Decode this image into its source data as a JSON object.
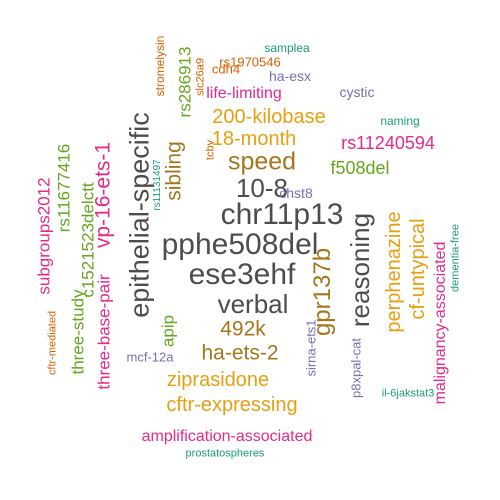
{
  "colors": {
    "dark": "#4d4d4d",
    "orange": "#e6a012",
    "brown": "#a6761d",
    "green": "#66a61e",
    "magenta": "#e7298a",
    "teal": "#1b9e77",
    "purple": "#7570b3",
    "rust": "#d95f02"
  },
  "words": [
    {
      "text": "pphe508del",
      "color": "dark"
    },
    {
      "text": "chr11p13",
      "color": "dark"
    },
    {
      "text": "ese3ehf",
      "color": "dark"
    },
    {
      "text": "epithelial-specific",
      "color": "dark"
    },
    {
      "text": "reasoning",
      "color": "dark"
    },
    {
      "text": "verbal",
      "color": "dark"
    },
    {
      "text": "10-8",
      "color": "dark"
    },
    {
      "text": "speed",
      "color": "brown"
    },
    {
      "text": "gpr137b",
      "color": "brown"
    },
    {
      "text": "492k",
      "color": "brown"
    },
    {
      "text": "sibling",
      "color": "brown"
    },
    {
      "text": "ha-ets-2",
      "color": "brown"
    },
    {
      "text": "vp-16-ets-1",
      "color": "magenta"
    },
    {
      "text": "200-kilobase",
      "color": "orange"
    },
    {
      "text": "18-month",
      "color": "orange"
    },
    {
      "text": "perphenazine",
      "color": "orange"
    },
    {
      "text": "cf-untypical",
      "color": "orange"
    },
    {
      "text": "ziprasidone",
      "color": "orange"
    },
    {
      "text": "cftr-expressing",
      "color": "orange"
    },
    {
      "text": "rs11240594",
      "color": "magenta"
    },
    {
      "text": "f508del",
      "color": "green"
    },
    {
      "text": "rs286913",
      "color": "green"
    },
    {
      "text": "c1521523delctt",
      "color": "green"
    },
    {
      "text": "rs11677416",
      "color": "green"
    },
    {
      "text": "three-study",
      "color": "green"
    },
    {
      "text": "apip",
      "color": "green"
    },
    {
      "text": "subgroups2012",
      "color": "magenta"
    },
    {
      "text": "three-base-pair",
      "color": "magenta"
    },
    {
      "text": "malignancy-associated",
      "color": "magenta"
    },
    {
      "text": "amplification-associated",
      "color": "magenta"
    },
    {
      "text": "life-limiting",
      "color": "magenta"
    },
    {
      "text": "cystic",
      "color": "purple"
    },
    {
      "text": "ha-esx",
      "color": "purple"
    },
    {
      "text": "chst8",
      "color": "purple"
    },
    {
      "text": "sirna-ets1",
      "color": "purple"
    },
    {
      "text": "p8xpal-cat",
      "color": "purple"
    },
    {
      "text": "mcf-12a",
      "color": "purple"
    },
    {
      "text": "samplea",
      "color": "teal"
    },
    {
      "text": "naming",
      "color": "teal"
    },
    {
      "text": "dementia-free",
      "color": "teal"
    },
    {
      "text": "il-6jakstat3",
      "color": "teal"
    },
    {
      "text": "prostatospheres",
      "color": "teal"
    },
    {
      "text": "rs11131497",
      "color": "teal"
    },
    {
      "text": "rs1970546",
      "color": "rust"
    },
    {
      "text": "cdh4",
      "color": "rust"
    },
    {
      "text": "stromelysin",
      "color": "rust"
    },
    {
      "text": "slc26a9",
      "color": "rust"
    },
    {
      "text": "tcbv",
      "color": "rust"
    },
    {
      "text": "cftr-mediated",
      "color": "rust"
    }
  ]
}
